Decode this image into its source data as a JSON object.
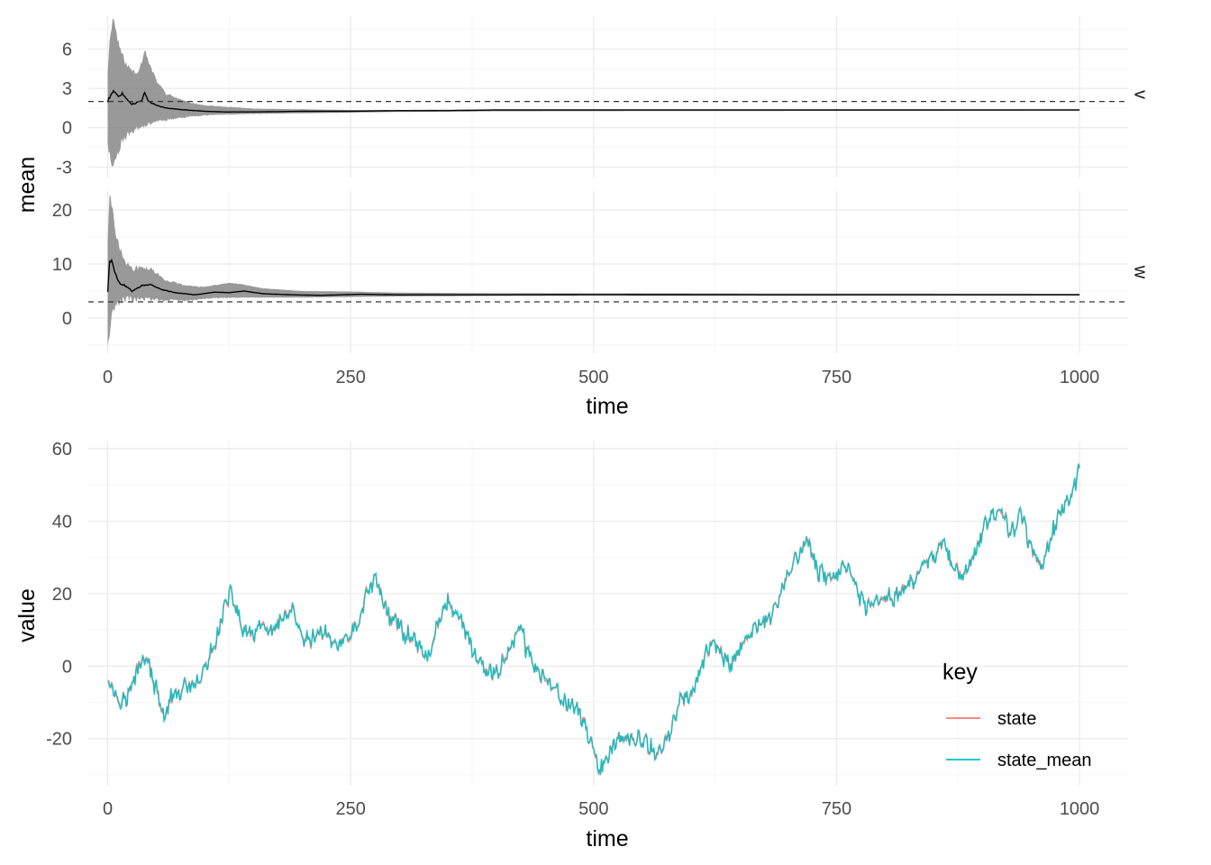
{
  "chart_data": [
    {
      "type": "line",
      "chart": "top",
      "xlabel": "time",
      "ylabel": "mean",
      "xlim": [
        -20,
        1050
      ],
      "x_ticks": [
        "0",
        "250",
        "500",
        "750",
        "1000"
      ],
      "panels": [
        {
          "strip": "v",
          "ylim": [
            -3.8,
            8.5
          ],
          "y_ticks": [
            "-3",
            "0",
            "3",
            "6"
          ],
          "reference_line": 2,
          "mean": [
            [
              0,
              2.0
            ],
            [
              3,
              2.5
            ],
            [
              6,
              2.9
            ],
            [
              10,
              2.4
            ],
            [
              15,
              2.6
            ],
            [
              20,
              2.1
            ],
            [
              25,
              1.8
            ],
            [
              30,
              1.9
            ],
            [
              35,
              2.1
            ],
            [
              38,
              2.7
            ],
            [
              42,
              2.0
            ],
            [
              50,
              1.7
            ],
            [
              60,
              1.5
            ],
            [
              80,
              1.35
            ],
            [
              100,
              1.25
            ],
            [
              120,
              1.2
            ],
            [
              150,
              1.2
            ],
            [
              200,
              1.25
            ],
            [
              250,
              1.25
            ],
            [
              300,
              1.3
            ],
            [
              350,
              1.3
            ],
            [
              400,
              1.35
            ],
            [
              500,
              1.35
            ],
            [
              700,
              1.35
            ],
            [
              1000,
              1.35
            ]
          ],
          "lower": [
            [
              0,
              -1.0
            ],
            [
              3,
              -2.7
            ],
            [
              6,
              -2.8
            ],
            [
              10,
              -2.0
            ],
            [
              15,
              -1.0
            ],
            [
              20,
              -0.6
            ],
            [
              25,
              -0.3
            ],
            [
              30,
              -0.1
            ],
            [
              40,
              0.2
            ],
            [
              50,
              0.5
            ],
            [
              60,
              0.6
            ],
            [
              80,
              0.8
            ],
            [
              100,
              0.95
            ],
            [
              150,
              1.05
            ],
            [
              200,
              1.1
            ],
            [
              250,
              1.15
            ],
            [
              300,
              1.2
            ],
            [
              400,
              1.25
            ],
            [
              1000,
              1.3
            ]
          ],
          "upper": [
            [
              0,
              4.5
            ],
            [
              3,
              7.5
            ],
            [
              6,
              8.4
            ],
            [
              10,
              6.8
            ],
            [
              15,
              5.5
            ],
            [
              20,
              4.7
            ],
            [
              25,
              4.4
            ],
            [
              30,
              4.2
            ],
            [
              35,
              5.0
            ],
            [
              38,
              6.0
            ],
            [
              42,
              5.0
            ],
            [
              50,
              3.6
            ],
            [
              60,
              2.6
            ],
            [
              80,
              2.0
            ],
            [
              100,
              1.7
            ],
            [
              150,
              1.45
            ],
            [
              200,
              1.4
            ],
            [
              250,
              1.35
            ],
            [
              300,
              1.35
            ],
            [
              400,
              1.4
            ],
            [
              1000,
              1.4
            ]
          ]
        },
        {
          "strip": "w",
          "ylim": [
            -6.5,
            23.5
          ],
          "y_ticks": [
            "0",
            "10",
            "20"
          ],
          "reference_line": 3,
          "mean": [
            [
              0,
              5.0
            ],
            [
              2,
              10.5
            ],
            [
              4,
              10.8
            ],
            [
              7,
              8.5
            ],
            [
              12,
              6.5
            ],
            [
              18,
              6.0
            ],
            [
              25,
              5.0
            ],
            [
              35,
              6.0
            ],
            [
              45,
              6.2
            ],
            [
              55,
              5.3
            ],
            [
              70,
              4.7
            ],
            [
              90,
              4.3
            ],
            [
              110,
              4.8
            ],
            [
              125,
              4.7
            ],
            [
              140,
              5.0
            ],
            [
              160,
              4.5
            ],
            [
              190,
              4.3
            ],
            [
              220,
              4.2
            ],
            [
              260,
              4.4
            ],
            [
              300,
              4.3
            ],
            [
              400,
              4.3
            ],
            [
              500,
              4.35
            ],
            [
              700,
              4.3
            ],
            [
              1000,
              4.3
            ]
          ],
          "lower": [
            [
              0,
              -6.0
            ],
            [
              2,
              -3.0
            ],
            [
              4,
              1.0
            ],
            [
              7,
              2.0
            ],
            [
              12,
              3.0
            ],
            [
              18,
              3.5
            ],
            [
              25,
              3.5
            ],
            [
              40,
              3.5
            ],
            [
              60,
              3.3
            ],
            [
              80,
              3.2
            ],
            [
              110,
              3.7
            ],
            [
              140,
              3.8
            ],
            [
              170,
              3.8
            ],
            [
              200,
              3.8
            ],
            [
              250,
              3.9
            ],
            [
              300,
              4.0
            ],
            [
              400,
              4.1
            ],
            [
              1000,
              4.2
            ]
          ],
          "upper": [
            [
              0,
              15.0
            ],
            [
              2,
              22.5
            ],
            [
              4,
              21.0
            ],
            [
              7,
              17.0
            ],
            [
              12,
              13.0
            ],
            [
              18,
              10.5
            ],
            [
              25,
              9.0
            ],
            [
              35,
              9.5
            ],
            [
              45,
              9.0
            ],
            [
              60,
              7.0
            ],
            [
              80,
              6.0
            ],
            [
              100,
              5.8
            ],
            [
              125,
              6.5
            ],
            [
              140,
              6.2
            ],
            [
              160,
              5.5
            ],
            [
              200,
              5.0
            ],
            [
              250,
              4.9
            ],
            [
              300,
              4.7
            ],
            [
              400,
              4.6
            ],
            [
              1000,
              4.5
            ]
          ]
        }
      ]
    },
    {
      "type": "line",
      "chart": "bottom",
      "xlabel": "time",
      "ylabel": "value",
      "xlim": [
        -20,
        1050
      ],
      "ylim": [
        -33,
        62
      ],
      "x_ticks": [
        "0",
        "250",
        "500",
        "750",
        "1000"
      ],
      "y_ticks": [
        "-20",
        "0",
        "20",
        "40",
        "60"
      ],
      "legend": {
        "title": "key",
        "position": "bottom-right",
        "items": [
          {
            "label": "state",
            "color": "#F8766D"
          },
          {
            "label": "state_mean",
            "color": "#00BFC4"
          }
        ]
      },
      "anchors": [
        [
          0,
          -3
        ],
        [
          10,
          -9
        ],
        [
          20,
          -9
        ],
        [
          35,
          2
        ],
        [
          40,
          2
        ],
        [
          50,
          -7
        ],
        [
          58,
          -14
        ],
        [
          65,
          -9
        ],
        [
          80,
          -6
        ],
        [
          90,
          -6
        ],
        [
          100,
          -1
        ],
        [
          110,
          6
        ],
        [
          118,
          14
        ],
        [
          125,
          20
        ],
        [
          130,
          18
        ],
        [
          140,
          9
        ],
        [
          150,
          9
        ],
        [
          160,
          11
        ],
        [
          170,
          9
        ],
        [
          180,
          13
        ],
        [
          190,
          15
        ],
        [
          200,
          7
        ],
        [
          210,
          7
        ],
        [
          220,
          10
        ],
        [
          230,
          7
        ],
        [
          240,
          6
        ],
        [
          250,
          9
        ],
        [
          260,
          12
        ],
        [
          265,
          20
        ],
        [
          270,
          22
        ],
        [
          275,
          24
        ],
        [
          282,
          20
        ],
        [
          290,
          13
        ],
        [
          300,
          12
        ],
        [
          305,
          8
        ],
        [
          310,
          9
        ],
        [
          320,
          6
        ],
        [
          330,
          2
        ],
        [
          335,
          7
        ],
        [
          340,
          12
        ],
        [
          345,
          15
        ],
        [
          350,
          18
        ],
        [
          360,
          14
        ],
        [
          370,
          8
        ],
        [
          380,
          2
        ],
        [
          390,
          -2
        ],
        [
          400,
          -2
        ],
        [
          410,
          3
        ],
        [
          420,
          8
        ],
        [
          425,
          12
        ],
        [
          430,
          5
        ],
        [
          440,
          0
        ],
        [
          450,
          -4
        ],
        [
          460,
          -7
        ],
        [
          470,
          -10
        ],
        [
          480,
          -11
        ],
        [
          490,
          -15
        ],
        [
          500,
          -24
        ],
        [
          505,
          -28
        ],
        [
          510,
          -27
        ],
        [
          520,
          -22
        ],
        [
          530,
          -19
        ],
        [
          540,
          -21
        ],
        [
          550,
          -20
        ],
        [
          560,
          -23
        ],
        [
          570,
          -24
        ],
        [
          580,
          -17
        ],
        [
          590,
          -9
        ],
        [
          600,
          -9
        ],
        [
          610,
          0
        ],
        [
          620,
          6
        ],
        [
          630,
          4
        ],
        [
          640,
          0
        ],
        [
          650,
          4
        ],
        [
          660,
          8
        ],
        [
          670,
          12
        ],
        [
          680,
          13
        ],
        [
          690,
          18
        ],
        [
          700,
          26
        ],
        [
          710,
          30
        ],
        [
          720,
          35
        ],
        [
          730,
          26
        ],
        [
          740,
          25
        ],
        [
          750,
          25
        ],
        [
          760,
          28
        ],
        [
          770,
          21
        ],
        [
          780,
          16
        ],
        [
          790,
          17
        ],
        [
          800,
          19
        ],
        [
          810,
          19
        ],
        [
          820,
          22
        ],
        [
          830,
          23
        ],
        [
          840,
          28
        ],
        [
          850,
          30
        ],
        [
          860,
          35
        ],
        [
          870,
          27
        ],
        [
          880,
          25
        ],
        [
          890,
          30
        ],
        [
          900,
          37
        ],
        [
          910,
          43
        ],
        [
          920,
          42
        ],
        [
          930,
          37
        ],
        [
          940,
          42
        ],
        [
          950,
          32
        ],
        [
          960,
          28
        ],
        [
          970,
          35
        ],
        [
          980,
          43
        ],
        [
          990,
          45
        ],
        [
          1000,
          55
        ]
      ]
    }
  ]
}
